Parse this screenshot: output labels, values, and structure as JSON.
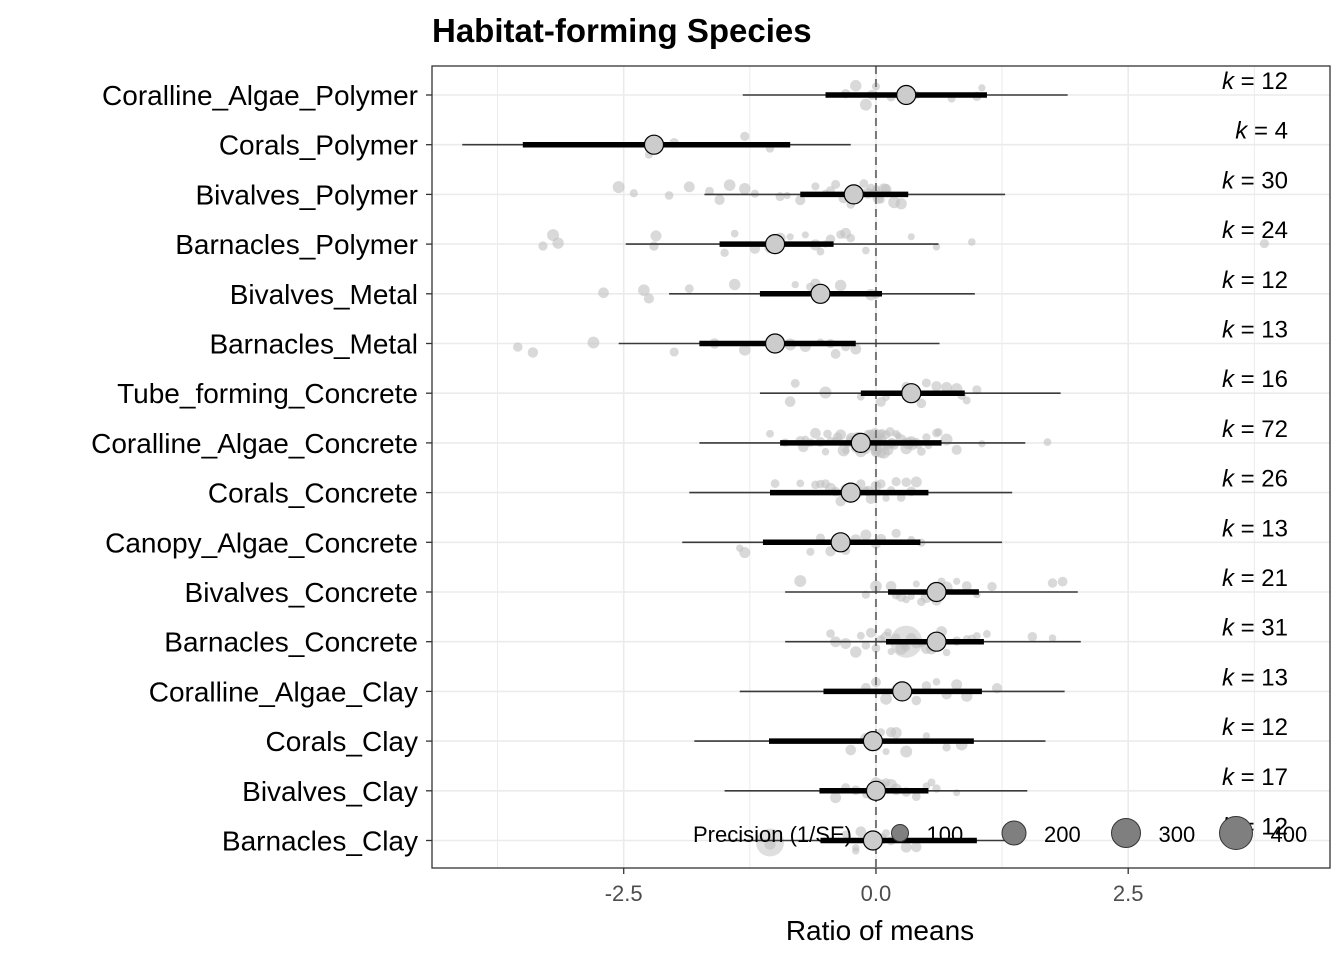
{
  "chart_data": {
    "type": "forest-orchard",
    "title": "Habitat-forming Species",
    "xlabel": "Ratio of means",
    "xlim": [
      -4.4,
      4.5
    ],
    "x_ticks": [
      -2.5,
      0.0,
      2.5
    ],
    "x_tick_labels": [
      "-2.5",
      "0.0",
      "2.5"
    ],
    "reference_line": 0,
    "categories": [
      "Coralline_Algae_Polymer",
      "Corals_Polymer",
      "Bivalves_Polymer",
      "Barnacles_Polymer",
      "Bivalves_Metal",
      "Barnacles_Metal",
      "Tube_forming_Concrete",
      "Coralline_Algae_Concrete",
      "Corals_Concrete",
      "Canopy_Algae_Concrete",
      "Bivalves_Concrete",
      "Barnacles_Concrete",
      "Coralline_Algae_Clay",
      "Corals_Clay",
      "Bivalves_Clay",
      "Barnacles_Clay"
    ],
    "k_prefix": "k",
    "k_values": [
      "= 12",
      "= 4",
      "= 30",
      "= 24",
      "= 12",
      "= 13",
      "= 16",
      "= 72",
      "= 26",
      "= 13",
      "= 21",
      "= 31",
      "= 13",
      "= 12",
      "= 17",
      "= 12"
    ],
    "estimates": [
      0.3,
      -2.2,
      -0.22,
      -1.0,
      -0.55,
      -1.0,
      0.35,
      -0.15,
      -0.25,
      -0.35,
      0.6,
      0.6,
      0.26,
      -0.03,
      0.0,
      -0.03
    ],
    "ci": [
      [
        -0.5,
        1.1
      ],
      [
        -3.5,
        -0.85
      ],
      [
        -0.75,
        0.32
      ],
      [
        -1.55,
        -0.42
      ],
      [
        -1.15,
        0.06
      ],
      [
        -1.75,
        -0.2
      ],
      [
        -0.15,
        0.88
      ],
      [
        -0.95,
        0.65
      ],
      [
        -1.05,
        0.52
      ],
      [
        -1.12,
        0.44
      ],
      [
        0.12,
        1.02
      ],
      [
        0.1,
        1.07
      ],
      [
        -0.52,
        1.05
      ],
      [
        -1.06,
        0.97
      ],
      [
        -0.56,
        0.52
      ],
      [
        -0.55,
        1.0
      ]
    ],
    "pi": [
      [
        -1.32,
        1.9
      ],
      [
        -4.1,
        -0.25
      ],
      [
        -1.7,
        1.28
      ],
      [
        -2.48,
        0.62
      ],
      [
        -2.05,
        0.98
      ],
      [
        -2.55,
        0.63
      ],
      [
        -1.15,
        1.83
      ],
      [
        -1.75,
        1.48
      ],
      [
        -1.85,
        1.35
      ],
      [
        -1.92,
        1.25
      ],
      [
        -0.9,
        2.0
      ],
      [
        -0.9,
        2.03
      ],
      [
        -1.35,
        1.87
      ],
      [
        -1.8,
        1.68
      ],
      [
        -1.5,
        1.5
      ],
      [
        -1.5,
        1.45
      ]
    ],
    "points_x": [
      [
        -0.04,
        0.0,
        -0.3,
        -0.2,
        0.15,
        0.3,
        0.35,
        0.4,
        0.75,
        1.0,
        1.05,
        -0.1
      ],
      [
        -1.3,
        -2.25,
        -2.0,
        -1.05
      ],
      [
        -2.55,
        -2.4,
        -2.05,
        -1.85,
        -1.65,
        -1.45,
        -1.3,
        -1.2,
        -0.95,
        -0.75,
        -0.6,
        -0.5,
        -0.4,
        -0.32,
        -0.25,
        -0.15,
        -0.08,
        -0.02,
        0.0,
        0.05,
        0.1,
        0.18,
        0.25,
        -1.55,
        -0.88,
        -0.45,
        -0.05,
        0.02,
        0.08,
        -0.12
      ],
      [
        -3.3,
        -3.2,
        -3.15,
        -2.2,
        -2.18,
        -1.5,
        -1.4,
        -1.2,
        -1.05,
        -0.95,
        -0.85,
        -0.7,
        -0.6,
        -0.55,
        -0.5,
        -0.45,
        -0.35,
        -0.25,
        -0.1,
        0.35,
        0.6,
        0.95,
        3.85,
        -0.3
      ],
      [
        -2.7,
        -2.3,
        -2.25,
        -1.85,
        -1.4,
        -0.8,
        -0.65,
        -0.6,
        -0.5,
        -0.05,
        0.0,
        -0.35
      ],
      [
        -3.55,
        -3.4,
        -2.8,
        -2.0,
        -1.6,
        -1.3,
        -0.85,
        -0.7,
        -0.55,
        -0.4,
        -0.3,
        -0.2,
        -0.45
      ],
      [
        -0.85,
        -0.8,
        -0.5,
        -0.15,
        0.1,
        0.3,
        0.35,
        0.45,
        0.5,
        0.6,
        0.7,
        0.8,
        0.85,
        0.9,
        1.0,
        0.05
      ],
      [
        -1.05,
        -0.9,
        -0.75,
        -0.7,
        -0.6,
        -0.55,
        -0.5,
        -0.45,
        -0.4,
        -0.35,
        -0.3,
        -0.28,
        -0.25,
        -0.2,
        -0.18,
        -0.15,
        -0.12,
        -0.1,
        -0.08,
        -0.05,
        -0.03,
        -0.02,
        0.0,
        0.0,
        0.01,
        0.02,
        0.03,
        0.05,
        0.06,
        0.08,
        0.1,
        0.12,
        0.15,
        0.18,
        0.2,
        0.25,
        0.3,
        0.35,
        0.4,
        0.45,
        0.5,
        0.6,
        0.7,
        0.8,
        1.05,
        1.7,
        -0.65,
        -0.38,
        -0.22,
        -0.06,
        0.04,
        0.14,
        0.28,
        0.52,
        -0.48,
        -0.15,
        0.08,
        0.22,
        -0.32,
        0.0,
        0.36,
        -0.01,
        0.02,
        0.11,
        -0.24,
        0.42,
        -0.72,
        0.62,
        -0.04,
        0.06,
        0.16,
        0.32
      ],
      [
        -1.0,
        -0.75,
        -0.6,
        -0.55,
        -0.5,
        -0.45,
        -0.4,
        -0.35,
        -0.3,
        -0.28,
        -0.25,
        -0.2,
        -0.18,
        -0.15,
        -0.1,
        -0.05,
        0.0,
        0.05,
        0.1,
        0.15,
        0.2,
        0.25,
        0.3,
        0.35,
        0.4,
        -0.08
      ],
      [
        -1.35,
        -1.3,
        -0.65,
        -0.55,
        -0.45,
        -0.3,
        -0.2,
        -0.1,
        0.0,
        0.05,
        0.2,
        0.35,
        0.45
      ],
      [
        -0.75,
        -0.1,
        0.0,
        0.15,
        0.2,
        0.3,
        0.4,
        0.5,
        0.55,
        0.65,
        0.7,
        0.8,
        0.9,
        1.0,
        1.15,
        1.75,
        1.85,
        0.25,
        0.45,
        0.6,
        0.35
      ],
      [
        -0.45,
        -0.4,
        -0.3,
        -0.2,
        -0.15,
        -0.1,
        0.0,
        0.05,
        0.1,
        0.15,
        0.2,
        0.25,
        0.3,
        0.35,
        0.4,
        0.45,
        0.5,
        0.55,
        0.6,
        0.65,
        0.7,
        0.8,
        0.9,
        0.95,
        1.0,
        1.1,
        1.55,
        1.75,
        0.28,
        0.12,
        -0.05
      ],
      [
        -0.1,
        0.0,
        0.1,
        0.2,
        0.3,
        0.4,
        0.5,
        0.6,
        0.7,
        0.8,
        0.9,
        1.2,
        0.25
      ],
      [
        -0.25,
        -0.1,
        0.0,
        0.1,
        0.15,
        0.3,
        0.5,
        0.7,
        0.85,
        0.05,
        -0.05,
        0.2
      ],
      [
        -0.4,
        -0.2,
        -0.1,
        -0.05,
        0.0,
        0.0,
        0.05,
        0.1,
        0.2,
        0.3,
        0.4,
        0.5,
        0.55,
        0.6,
        0.8,
        0.15,
        -0.3
      ],
      [
        -1.05,
        -0.3,
        -0.2,
        -0.2,
        -0.1,
        0.0,
        0.05,
        0.1,
        0.15,
        0.3,
        0.4,
        -0.15
      ]
    ],
    "legend": {
      "title": "Precision (1/SE)",
      "labels": [
        "100",
        "200",
        "300",
        "400"
      ],
      "values": [
        100,
        200,
        300,
        400
      ],
      "position": "bottom-right"
    },
    "grid": true,
    "colors": {
      "points": "#bfbfbf",
      "estimate_fill": "#cccccc",
      "estimate_stroke": "#000000",
      "ci": "#000000",
      "pi": "#3a3a3a",
      "grid": "#ebebeb",
      "legend_fill": "#7f7f7f",
      "zero_line": "#777777"
    }
  }
}
